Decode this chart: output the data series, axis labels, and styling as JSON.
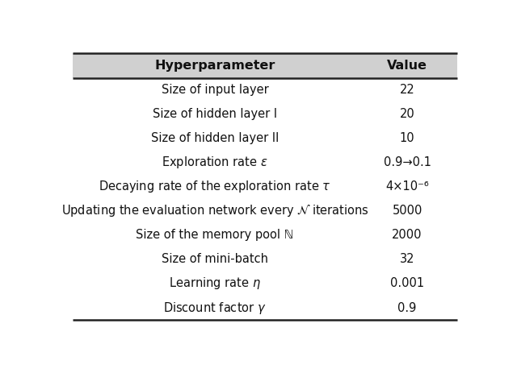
{
  "headers": [
    "Hyperparameter",
    "Value"
  ],
  "rows": [
    [
      "Size of input layer",
      "22"
    ],
    [
      "Size of hidden layer I",
      "20"
    ],
    [
      "Size of hidden layer II",
      "10"
    ],
    [
      "Exploration rate $\\epsilon$",
      "0.9→0.1"
    ],
    [
      "Decaying rate of the exploration rate $\\tau$",
      "4×10⁻⁶"
    ],
    [
      "Updating the evaluation network every $\\mathcal{N}$ iterations",
      "5000"
    ],
    [
      "Size of the memory pool ℕ",
      "2000"
    ],
    [
      "Size of mini-batch",
      "32"
    ],
    [
      "Learning rate $\\eta$",
      "0.001"
    ],
    [
      "Discount factor $\\gamma$",
      "0.9"
    ]
  ],
  "background_color": "#ffffff",
  "header_bg": "#d0d0d0",
  "border_color": "#222222",
  "text_color": "#111111",
  "header_fontsize": 11.5,
  "row_fontsize": 10.5,
  "fig_width": 6.4,
  "fig_height": 4.58
}
